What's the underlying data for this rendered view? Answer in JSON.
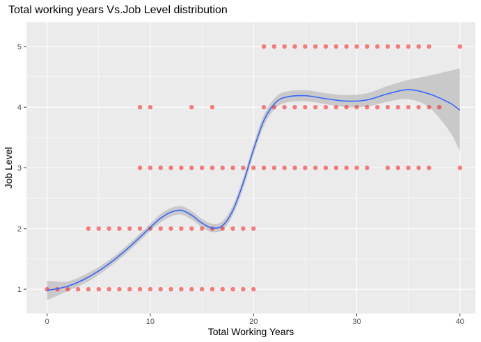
{
  "chart_data": {
    "type": "scatter",
    "title": "Total working years Vs.Job Level distribution",
    "xlabel": "Total Working Years",
    "ylabel": "Job Level",
    "xlim": [
      -2,
      41.5
    ],
    "ylim": [
      0.6,
      5.4
    ],
    "x_ticks": [
      0,
      10,
      20,
      30,
      40
    ],
    "y_ticks": [
      1,
      2,
      3,
      4,
      5
    ],
    "grid": true,
    "legend": "none",
    "colors": {
      "points": "#ff0000",
      "smooth_line": "#3366ff",
      "ribbon": "#bdbdbd",
      "panel": "#ebebeb",
      "grid": "#ffffff"
    },
    "series": [
      {
        "kind": "points",
        "points": [
          {
            "x": 0,
            "y": 1
          },
          {
            "x": 1,
            "y": 1
          },
          {
            "x": 2,
            "y": 1
          },
          {
            "x": 3,
            "y": 1
          },
          {
            "x": 4,
            "y": 1
          },
          {
            "x": 5,
            "y": 1
          },
          {
            "x": 6,
            "y": 1
          },
          {
            "x": 7,
            "y": 1
          },
          {
            "x": 8,
            "y": 1
          },
          {
            "x": 9,
            "y": 1
          },
          {
            "x": 10,
            "y": 1
          },
          {
            "x": 11,
            "y": 1
          },
          {
            "x": 12,
            "y": 1
          },
          {
            "x": 13,
            "y": 1
          },
          {
            "x": 14,
            "y": 1
          },
          {
            "x": 15,
            "y": 1
          },
          {
            "x": 16,
            "y": 1
          },
          {
            "x": 17,
            "y": 1
          },
          {
            "x": 18,
            "y": 1
          },
          {
            "x": 19,
            "y": 1
          },
          {
            "x": 20,
            "y": 1
          },
          {
            "x": 4,
            "y": 2
          },
          {
            "x": 5,
            "y": 2
          },
          {
            "x": 6,
            "y": 2
          },
          {
            "x": 7,
            "y": 2
          },
          {
            "x": 8,
            "y": 2
          },
          {
            "x": 9,
            "y": 2
          },
          {
            "x": 10,
            "y": 2
          },
          {
            "x": 11,
            "y": 2
          },
          {
            "x": 12,
            "y": 2
          },
          {
            "x": 13,
            "y": 2
          },
          {
            "x": 14,
            "y": 2
          },
          {
            "x": 15,
            "y": 2
          },
          {
            "x": 16,
            "y": 2
          },
          {
            "x": 17,
            "y": 2
          },
          {
            "x": 18,
            "y": 2
          },
          {
            "x": 19,
            "y": 2
          },
          {
            "x": 20,
            "y": 2
          },
          {
            "x": 9,
            "y": 3
          },
          {
            "x": 10,
            "y": 3
          },
          {
            "x": 11,
            "y": 3
          },
          {
            "x": 12,
            "y": 3
          },
          {
            "x": 13,
            "y": 3
          },
          {
            "x": 14,
            "y": 3
          },
          {
            "x": 15,
            "y": 3
          },
          {
            "x": 16,
            "y": 3
          },
          {
            "x": 17,
            "y": 3
          },
          {
            "x": 18,
            "y": 3
          },
          {
            "x": 19,
            "y": 3
          },
          {
            "x": 20,
            "y": 3
          },
          {
            "x": 21,
            "y": 3
          },
          {
            "x": 22,
            "y": 3
          },
          {
            "x": 23,
            "y": 3
          },
          {
            "x": 24,
            "y": 3
          },
          {
            "x": 25,
            "y": 3
          },
          {
            "x": 26,
            "y": 3
          },
          {
            "x": 27,
            "y": 3
          },
          {
            "x": 28,
            "y": 3
          },
          {
            "x": 29,
            "y": 3
          },
          {
            "x": 30,
            "y": 3
          },
          {
            "x": 31,
            "y": 3
          },
          {
            "x": 33,
            "y": 3
          },
          {
            "x": 34,
            "y": 3
          },
          {
            "x": 35,
            "y": 3
          },
          {
            "x": 36,
            "y": 3
          },
          {
            "x": 37,
            "y": 3
          },
          {
            "x": 40,
            "y": 3
          },
          {
            "x": 9,
            "y": 4
          },
          {
            "x": 10,
            "y": 4
          },
          {
            "x": 14,
            "y": 4
          },
          {
            "x": 16,
            "y": 4
          },
          {
            "x": 21,
            "y": 4
          },
          {
            "x": 22,
            "y": 4
          },
          {
            "x": 23,
            "y": 4
          },
          {
            "x": 24,
            "y": 4
          },
          {
            "x": 25,
            "y": 4
          },
          {
            "x": 26,
            "y": 4
          },
          {
            "x": 27,
            "y": 4
          },
          {
            "x": 28,
            "y": 4
          },
          {
            "x": 29,
            "y": 4
          },
          {
            "x": 30,
            "y": 4
          },
          {
            "x": 31,
            "y": 4
          },
          {
            "x": 32,
            "y": 4
          },
          {
            "x": 33,
            "y": 4
          },
          {
            "x": 34,
            "y": 4
          },
          {
            "x": 35,
            "y": 4
          },
          {
            "x": 36,
            "y": 4
          },
          {
            "x": 37,
            "y": 4
          },
          {
            "x": 38,
            "y": 4
          },
          {
            "x": 21,
            "y": 5
          },
          {
            "x": 22,
            "y": 5
          },
          {
            "x": 23,
            "y": 5
          },
          {
            "x": 24,
            "y": 5
          },
          {
            "x": 25,
            "y": 5
          },
          {
            "x": 26,
            "y": 5
          },
          {
            "x": 27,
            "y": 5
          },
          {
            "x": 28,
            "y": 5
          },
          {
            "x": 29,
            "y": 5
          },
          {
            "x": 30,
            "y": 5
          },
          {
            "x": 31,
            "y": 5
          },
          {
            "x": 32,
            "y": 5
          },
          {
            "x": 33,
            "y": 5
          },
          {
            "x": 34,
            "y": 5
          },
          {
            "x": 35,
            "y": 5
          },
          {
            "x": 36,
            "y": 5
          },
          {
            "x": 37,
            "y": 5
          },
          {
            "x": 40,
            "y": 5
          }
        ]
      },
      {
        "kind": "smooth",
        "points": [
          {
            "x": 0,
            "y": 0.98,
            "lo": 0.82,
            "hi": 1.14
          },
          {
            "x": 2,
            "y": 1.05,
            "lo": 0.97,
            "hi": 1.13
          },
          {
            "x": 4,
            "y": 1.2,
            "lo": 1.13,
            "hi": 1.27
          },
          {
            "x": 6,
            "y": 1.42,
            "lo": 1.36,
            "hi": 1.48
          },
          {
            "x": 8,
            "y": 1.7,
            "lo": 1.64,
            "hi": 1.76
          },
          {
            "x": 10,
            "y": 2.02,
            "lo": 1.96,
            "hi": 2.08
          },
          {
            "x": 11,
            "y": 2.17,
            "lo": 2.1,
            "hi": 2.24
          },
          {
            "x": 12,
            "y": 2.27,
            "lo": 2.2,
            "hi": 2.34
          },
          {
            "x": 13,
            "y": 2.3,
            "lo": 2.23,
            "hi": 2.37
          },
          {
            "x": 14,
            "y": 2.22,
            "lo": 2.15,
            "hi": 2.29
          },
          {
            "x": 15,
            "y": 2.09,
            "lo": 2.02,
            "hi": 2.16
          },
          {
            "x": 16,
            "y": 2.01,
            "lo": 1.94,
            "hi": 2.08
          },
          {
            "x": 17,
            "y": 2.05,
            "lo": 1.98,
            "hi": 2.12
          },
          {
            "x": 18,
            "y": 2.3,
            "lo": 2.22,
            "hi": 2.38
          },
          {
            "x": 19,
            "y": 2.75,
            "lo": 2.66,
            "hi": 2.84
          },
          {
            "x": 20,
            "y": 3.3,
            "lo": 3.21,
            "hi": 3.39
          },
          {
            "x": 21,
            "y": 3.78,
            "lo": 3.69,
            "hi": 3.87
          },
          {
            "x": 22,
            "y": 4.05,
            "lo": 3.96,
            "hi": 4.14
          },
          {
            "x": 23,
            "y": 4.16,
            "lo": 4.07,
            "hi": 4.25
          },
          {
            "x": 25,
            "y": 4.19,
            "lo": 4.1,
            "hi": 4.28
          },
          {
            "x": 27,
            "y": 4.14,
            "lo": 4.05,
            "hi": 4.23
          },
          {
            "x": 29,
            "y": 4.1,
            "lo": 4.0,
            "hi": 4.2
          },
          {
            "x": 31,
            "y": 4.12,
            "lo": 4.01,
            "hi": 4.23
          },
          {
            "x": 33,
            "y": 4.22,
            "lo": 4.09,
            "hi": 4.35
          },
          {
            "x": 35,
            "y": 4.29,
            "lo": 4.13,
            "hi": 4.45
          },
          {
            "x": 37,
            "y": 4.22,
            "lo": 4.0,
            "hi": 4.52
          },
          {
            "x": 39,
            "y": 4.07,
            "lo": 3.6,
            "hi": 4.6
          },
          {
            "x": 40,
            "y": 3.95,
            "lo": 3.27,
            "hi": 4.64
          }
        ]
      }
    ]
  }
}
